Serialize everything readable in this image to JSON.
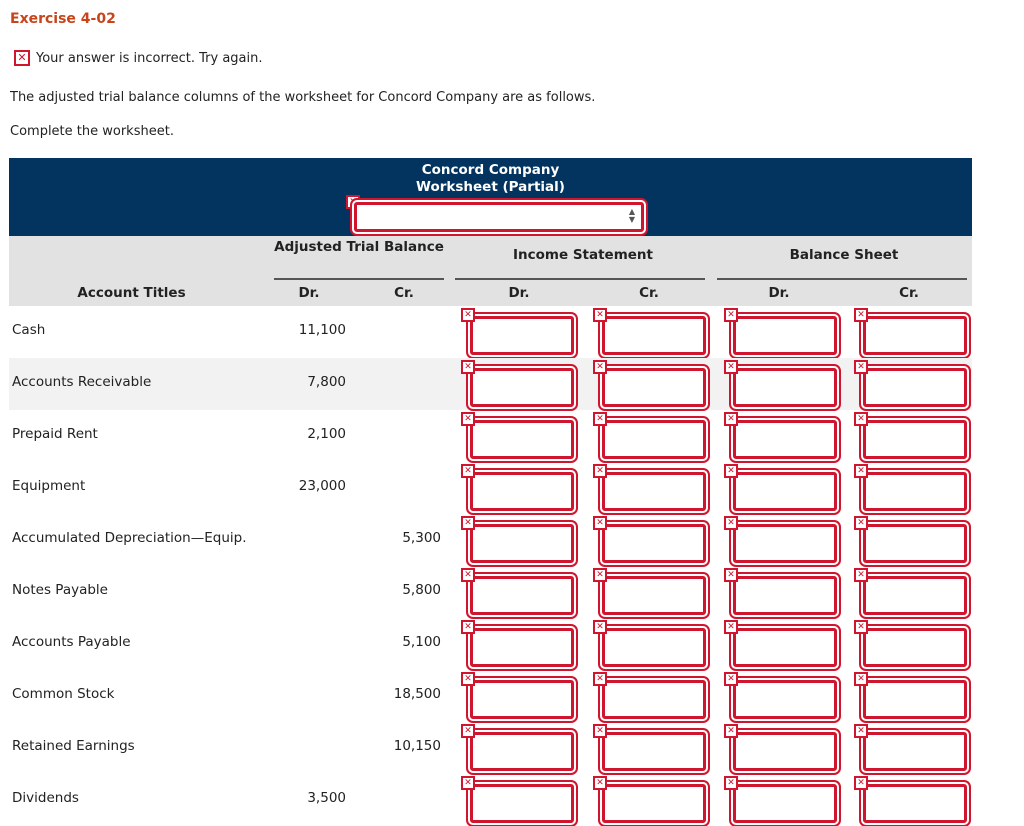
{
  "exercise_title": "Exercise 4-02",
  "feedback": {
    "icon": "x-icon",
    "text": "Your answer is incorrect.  Try again."
  },
  "intro": "The adjusted trial balance columns of the worksheet for Concord Company are as follows.",
  "instruction": "Complete the worksheet.",
  "worksheet": {
    "company": "Concord Company",
    "subtitle": "Worksheet (Partial)",
    "date_dropdown_value": "",
    "groups": {
      "adjusted_trial_balance": "Adjusted Trial Balance",
      "income_statement": "Income Statement",
      "balance_sheet": "Balance Sheet"
    },
    "columns": {
      "account_titles": "Account Titles",
      "atb_dr": "Dr.",
      "atb_cr": "Cr.",
      "is_dr": "Dr.",
      "is_cr": "Cr.",
      "bs_dr": "Dr.",
      "bs_cr": "Cr."
    },
    "rows": [
      {
        "account": "Cash",
        "dr": "11,100",
        "cr": ""
      },
      {
        "account": "Accounts Receivable",
        "dr": "7,800",
        "cr": ""
      },
      {
        "account": "Prepaid Rent",
        "dr": "2,100",
        "cr": ""
      },
      {
        "account": "Equipment",
        "dr": "23,000",
        "cr": ""
      },
      {
        "account": "Accumulated Depreciation—Equip.",
        "dr": "",
        "cr": "5,300"
      },
      {
        "account": "Notes Payable",
        "dr": "",
        "cr": "5,800"
      },
      {
        "account": "Accounts Payable",
        "dr": "",
        "cr": "5,100"
      },
      {
        "account": "Common Stock",
        "dr": "",
        "cr": "18,500"
      },
      {
        "account": "Retained Earnings",
        "dr": "",
        "cr": "10,150"
      },
      {
        "account": "Dividends",
        "dr": "3,500",
        "cr": ""
      }
    ]
  },
  "colors": {
    "title": "#c8441a",
    "header_bg": "#03345f",
    "error_red": "#d0162f",
    "subheader_bg": "#e2e2e2"
  }
}
